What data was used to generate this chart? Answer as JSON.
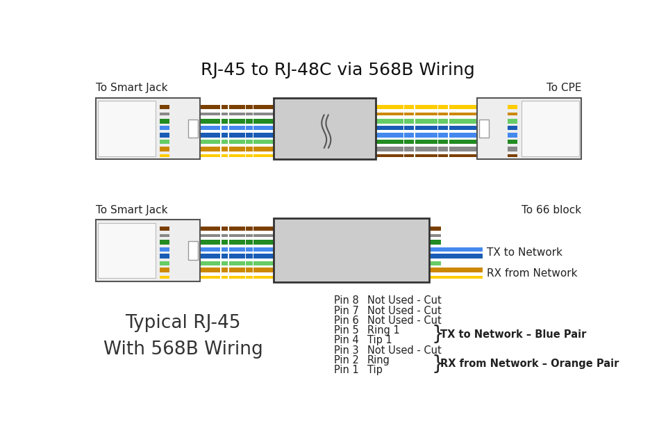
{
  "title": "RJ-45 to RJ-48C via 568B Wiring",
  "title_fontsize": 18,
  "bg_color": "#ffffff",
  "top_left_label": "To Smart Jack",
  "top_right_label": "To CPE",
  "bottom_left_label": "To Smart Jack",
  "bottom_right_label": "To 66 block",
  "tx_label": "TX to Network",
  "rx_label": "RX from Network",
  "typical_label": "Typical RJ-45\nWith 568B Wiring",
  "pin_descriptions": [
    [
      "Pin 8",
      "Not Used - Cut"
    ],
    [
      "Pin 7",
      "Not Used - Cut"
    ],
    [
      "Pin 6",
      "Not Used - Cut"
    ],
    [
      "Pin 5",
      "Ring 1"
    ],
    [
      "Pin 4",
      "Tip 1"
    ],
    [
      "Pin 3",
      "Not Used - Cut"
    ],
    [
      "Pin 2",
      "Ring"
    ],
    [
      "Pin 1",
      "Tip"
    ]
  ],
  "brace_tx_label": "TX to Network – Blue Pair",
  "brace_rx_label": "RX from Network – Orange Pair",
  "colors": {
    "brown": "#7B3F00",
    "brown_stripe": "#c8860a",
    "gray": "#888888",
    "green": "#228B22",
    "green_stripe": "#66cc66",
    "blue": "#1a5cb5",
    "blue_stripe": "#4488ee",
    "orange": "#cc8800",
    "orange_stripe": "#ffcc00",
    "white": "#ffffff",
    "gray_dark": "#666666"
  },
  "coupler_fill": "#cccccc",
  "coupler_border": "#333333",
  "connector_fill": "#eeeeee",
  "connector_border": "#555555"
}
